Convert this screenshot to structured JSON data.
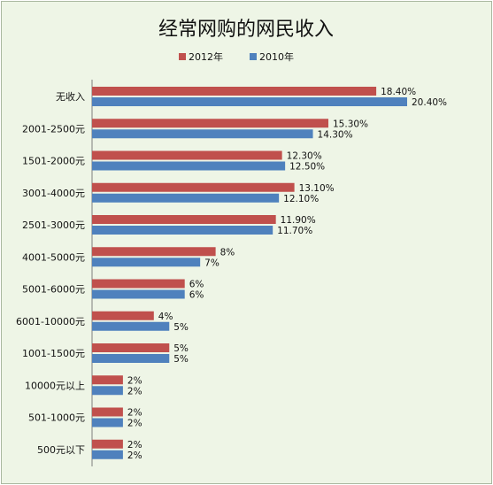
{
  "chart_data": {
    "type": "bar",
    "orientation": "horizontal",
    "title": "经常网购的网民收入",
    "categories": [
      "无收入",
      "2001-2500元",
      "1501-2000元",
      "3001-4000元",
      "2501-3000元",
      "4001-5000元",
      "5001-6000元",
      "6001-10000元",
      "1001-1500元",
      "10000元以上",
      "501-1000元",
      "500元以下"
    ],
    "series": [
      {
        "name": "2012年",
        "color": "#c0504d",
        "values": [
          18.4,
          15.3,
          12.3,
          13.1,
          11.9,
          8,
          6,
          4,
          5,
          2,
          2,
          2
        ],
        "labels": [
          "18.40%",
          "15.30%",
          "12.30%",
          "13.10%",
          "11.90%",
          "8%",
          "6%",
          "4%",
          "5%",
          "2%",
          "2%",
          "2%"
        ]
      },
      {
        "name": "2010年",
        "color": "#4f81bd",
        "values": [
          20.4,
          14.3,
          12.5,
          12.1,
          11.7,
          7,
          6,
          5,
          5,
          2,
          2,
          2
        ],
        "labels": [
          "20.40%",
          "14.30%",
          "12.50%",
          "12.10%",
          "11.70%",
          "7%",
          "6%",
          "5%",
          "5%",
          "2%",
          "2%",
          "2%"
        ]
      }
    ],
    "xlim": [
      0,
      20.4
    ],
    "legend_position": "top",
    "grid": false
  }
}
